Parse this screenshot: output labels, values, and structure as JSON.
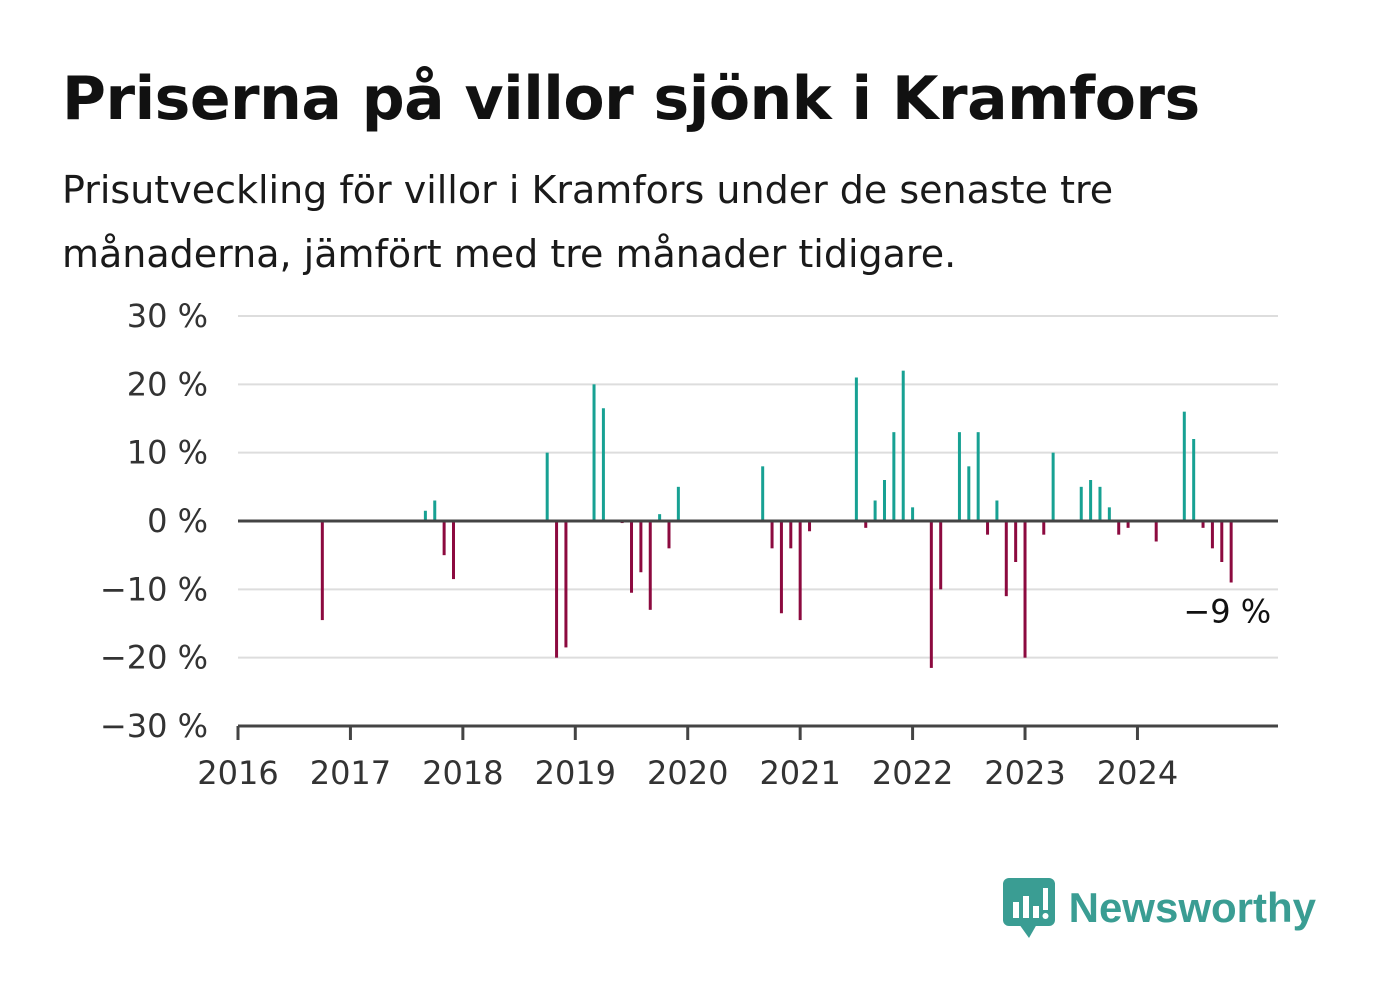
{
  "header": {
    "title": "Priserna på villor sjönk i Kramfors",
    "subtitle": "Prisutveckling för villor i Kramfors under de senaste tre månaderna, jämfört med tre månader tidigare."
  },
  "branding": {
    "name": "Newsworthy",
    "logo_icon": "bar-chart-speech-bubble-icon",
    "color": "#3a9d93"
  },
  "colors": {
    "positive": "#17a193",
    "negative": "#8c0a3f",
    "grid": "#dddddd",
    "axis": "#444444"
  },
  "chart_data": {
    "type": "bar",
    "title": "Priserna på villor sjönk i Kramfors",
    "xlabel": "",
    "ylabel": "",
    "ylim": [
      -30,
      30
    ],
    "xlim": [
      2016.0,
      2025.25
    ],
    "grid": true,
    "y_ticks": [
      {
        "value": 30,
        "label": "30 %"
      },
      {
        "value": 20,
        "label": "20 %"
      },
      {
        "value": 10,
        "label": "10 %"
      },
      {
        "value": 0,
        "label": "0 %"
      },
      {
        "value": -10,
        "label": "−10 %"
      },
      {
        "value": -20,
        "label": "−20 %"
      },
      {
        "value": -30,
        "label": "−30 %"
      }
    ],
    "x_ticks": [
      {
        "value": 2016,
        "label": "2016"
      },
      {
        "value": 2017,
        "label": "2017"
      },
      {
        "value": 2018,
        "label": "2018"
      },
      {
        "value": 2019,
        "label": "2019"
      },
      {
        "value": 2020,
        "label": "2020"
      },
      {
        "value": 2021,
        "label": "2021"
      },
      {
        "value": 2022,
        "label": "2022"
      },
      {
        "value": 2023,
        "label": "2023"
      },
      {
        "value": 2024,
        "label": "2024"
      }
    ],
    "x": [
      "2016-10",
      "2017-09",
      "2017-10",
      "2017-11",
      "2017-12",
      "2018-10",
      "2018-11",
      "2018-12",
      "2019-03",
      "2019-04",
      "2019-06",
      "2019-07",
      "2019-08",
      "2019-09",
      "2019-10",
      "2019-11",
      "2019-12",
      "2020-09",
      "2020-10",
      "2020-11",
      "2020-12",
      "2021-01",
      "2021-02",
      "2021-07",
      "2021-08",
      "2021-09",
      "2021-10",
      "2021-11",
      "2021-12",
      "2022-01",
      "2022-03",
      "2022-04",
      "2022-06",
      "2022-07",
      "2022-08",
      "2022-09",
      "2022-10",
      "2022-11",
      "2022-12",
      "2023-01",
      "2023-03",
      "2023-04",
      "2023-07",
      "2023-08",
      "2023-09",
      "2023-10",
      "2023-11",
      "2023-12",
      "2024-03",
      "2024-06",
      "2024-07",
      "2024-08",
      "2024-09",
      "2024-10",
      "2024-11"
    ],
    "values": [
      -14.5,
      1.5,
      3,
      -5,
      -8.5,
      10,
      -20,
      -18.5,
      20,
      16.5,
      -0.3,
      -10.5,
      -7.5,
      -13,
      1,
      -4,
      5,
      8,
      -4,
      -13.5,
      -4,
      -14.5,
      -1.5,
      21,
      -1,
      3,
      6,
      13,
      22,
      2,
      -21.5,
      -10,
      13,
      8,
      13,
      -2,
      3,
      -11,
      -6,
      -20,
      -2,
      10,
      5,
      6,
      5,
      2,
      -2,
      -1,
      -3,
      16,
      12,
      -1,
      -4,
      -6,
      -9
    ],
    "annotations": [
      {
        "x": "2024-11",
        "y": -9,
        "text": "−9 %"
      }
    ]
  }
}
